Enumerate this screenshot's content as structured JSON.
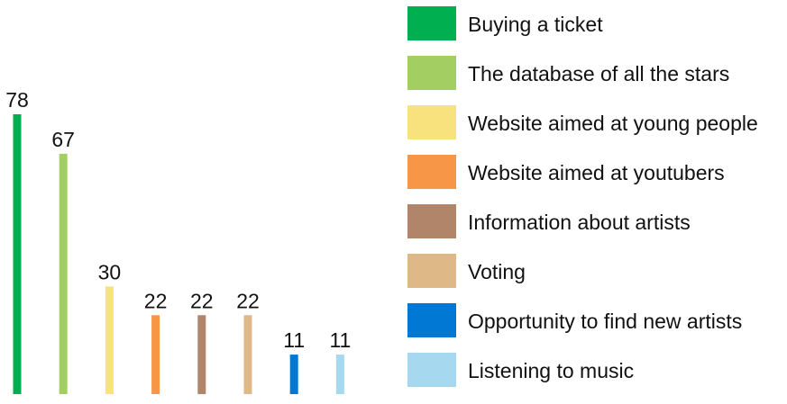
{
  "chart_data": {
    "type": "bar",
    "categories": [
      "Buying a ticket",
      "The database of all the stars",
      "Website aimed at young people",
      "Website aimed at youtubers",
      "Information about artists",
      "Voting",
      "Opportunity to find new artists",
      "Listening to music"
    ],
    "values": [
      78,
      67,
      30,
      22,
      22,
      22,
      11,
      11
    ],
    "colors": [
      "#00b050",
      "#a3cf62",
      "#f7e27d",
      "#f79646",
      "#b0856a",
      "#deb887",
      "#0078d4",
      "#a6d8f0"
    ],
    "ylim": [
      0,
      78
    ],
    "grid": false,
    "legend_position": "right",
    "data_labels": true
  },
  "legend": [
    {
      "label": "Buying a ticket",
      "color": "#00b050"
    },
    {
      "label": "The database of all the stars",
      "color": "#a3cf62"
    },
    {
      "label": "Website aimed at young people",
      "color": "#f7e27d"
    },
    {
      "label": "Website aimed at youtubers",
      "color": "#f79646"
    },
    {
      "label": "Information about artists",
      "color": "#b0856a"
    },
    {
      "label": "Voting",
      "color": "#deb887"
    },
    {
      "label": "Opportunity to find new artists",
      "color": "#0078d4"
    },
    {
      "label": "Listening to music",
      "color": "#a6d8f0"
    }
  ]
}
